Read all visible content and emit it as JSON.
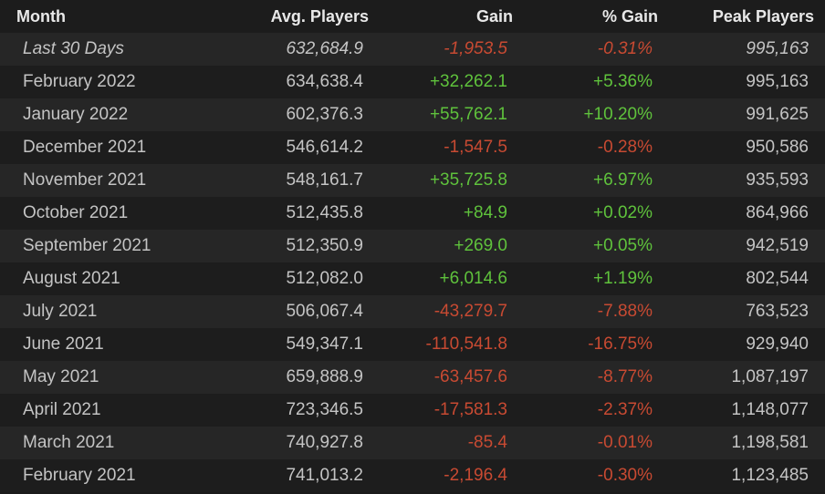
{
  "table": {
    "header": [
      "Month",
      "Avg. Players",
      "Gain",
      "% Gain",
      "Peak Players"
    ],
    "rows": [
      [
        "Last 30 Days",
        "632,684.9",
        "-1,953.5",
        "-0.31%",
        "995,163"
      ],
      [
        "February 2022",
        "634,638.4",
        "+32,262.1",
        "+5.36%",
        "995,163"
      ],
      [
        "January 2022",
        "602,376.3",
        "+55,762.1",
        "+10.20%",
        "991,625"
      ],
      [
        "December 2021",
        "546,614.2",
        "-1,547.5",
        "-0.28%",
        "950,586"
      ],
      [
        "November 2021",
        "548,161.7",
        "+35,725.8",
        "+6.97%",
        "935,593"
      ],
      [
        "October 2021",
        "512,435.8",
        "+84.9",
        "+0.02%",
        "864,966"
      ],
      [
        "September 2021",
        "512,350.9",
        "+269.0",
        "+0.05%",
        "942,519"
      ],
      [
        "August 2021",
        "512,082.0",
        "+6,014.6",
        "+1.19%",
        "802,544"
      ],
      [
        "July 2021",
        "506,067.4",
        "-43,279.7",
        "-7.88%",
        "763,523"
      ],
      [
        "June 2021",
        "549,347.1",
        "-110,541.8",
        "-16.75%",
        "929,940"
      ],
      [
        "May 2021",
        "659,888.9",
        "-63,457.6",
        "-8.77%",
        "1,087,197"
      ],
      [
        "April 2021",
        "723,346.5",
        "-17,581.3",
        "-2.37%",
        "1,148,077"
      ],
      [
        "March 2021",
        "740,927.8",
        "-85.4",
        "-0.01%",
        "1,198,581"
      ],
      [
        "February 2021",
        "741,013.2",
        "-2,196.4",
        "-0.30%",
        "1,123,485"
      ]
    ]
  }
}
